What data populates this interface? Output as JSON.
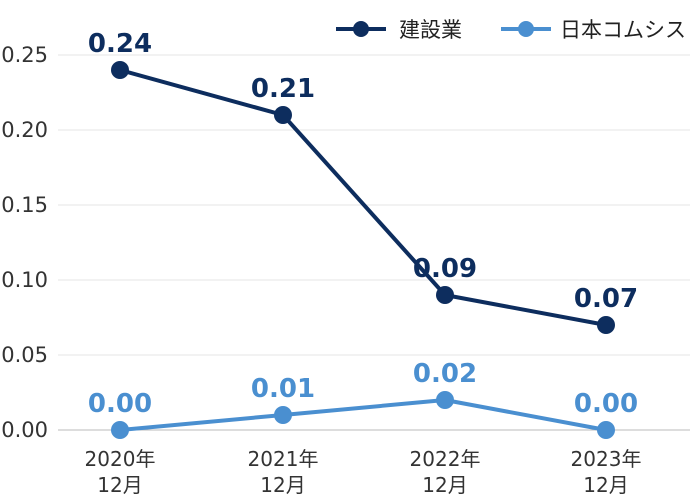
{
  "chart_data": {
    "type": "line",
    "title": "",
    "xlabel": "",
    "ylabel": "",
    "categories": [
      [
        "2020年",
        "12月"
      ],
      [
        "2021年",
        "12月"
      ],
      [
        "2022年",
        "12月"
      ],
      [
        "2023年",
        "12月"
      ]
    ],
    "ylim": [
      0,
      0.25
    ],
    "yticks": [
      "0.00",
      "0.05",
      "0.10",
      "0.15",
      "0.20",
      "0.25"
    ],
    "grid": true,
    "legend_position": "top-right",
    "series": [
      {
        "name": "建設業",
        "color": "#0d2d5e",
        "values": [
          0.24,
          0.21,
          0.09,
          0.07
        ],
        "labels": [
          "0.24",
          "0.21",
          "0.09",
          "0.07"
        ]
      },
      {
        "name": "日本コムシス",
        "color": "#4a8fd0",
        "values": [
          0.0,
          0.01,
          0.02,
          0.0
        ],
        "labels": [
          "0.00",
          "0.01",
          "0.02",
          "0.00"
        ]
      }
    ]
  }
}
